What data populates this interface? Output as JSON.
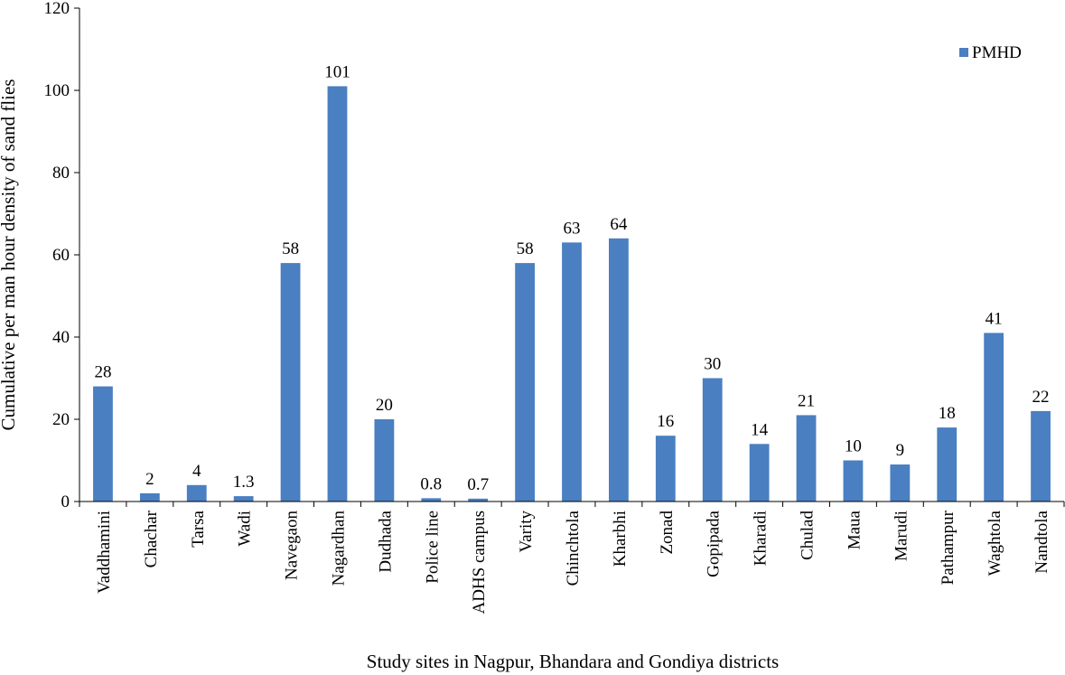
{
  "chart_data": {
    "type": "bar",
    "title": "",
    "xlabel": "Study sites in Nagpur, Bhandara and Gondiya districts",
    "ylabel": "Cumulative per man hour density of sand flies",
    "ylim": [
      0,
      120
    ],
    "yticks": [
      0,
      20,
      40,
      60,
      80,
      100,
      120
    ],
    "grid": false,
    "legend_position": "top-right",
    "bar_color": "#4a7fc1",
    "categories": [
      "Vaddhamini",
      "Chachar",
      "Tarsa",
      "Wadi",
      "Navegaon",
      "Nagardhan",
      "Dudhada",
      "Police line",
      "ADHS campus",
      "Varity",
      "Chinchtola",
      "Kharbhi",
      "Zonad",
      "Gopipada",
      "Kharadi",
      "Chulad",
      "Maua",
      "Marudi",
      "Pathampur",
      "Waghtola",
      "Nandtola"
    ],
    "series": [
      {
        "name": "PMHD",
        "values": [
          28,
          2,
          4,
          1.3,
          58,
          101,
          20,
          0.8,
          0.7,
          58,
          63,
          64,
          16,
          30,
          14,
          21,
          10,
          9,
          18,
          41,
          22
        ],
        "labels": [
          "28",
          "2",
          "4",
          "1.3",
          "58",
          "101",
          "20",
          "0.8",
          "0.7",
          "58",
          "63",
          "64",
          "16",
          "30",
          "14",
          "21",
          "10",
          "9",
          "18",
          "41",
          "22"
        ]
      }
    ]
  }
}
